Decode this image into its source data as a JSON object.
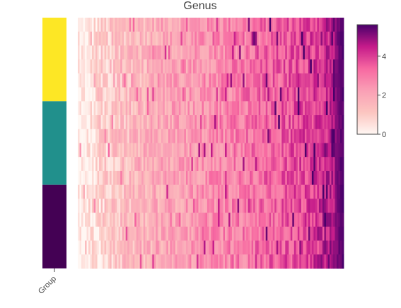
{
  "chart_data": {
    "type": "heatmap",
    "title": "Genus",
    "xlabel": "",
    "ylabel": "",
    "annotation_track": {
      "label": "Group",
      "groups": [
        {
          "rows": [
            0,
            5
          ],
          "color": "#fde725"
        },
        {
          "rows": [
            6,
            11
          ],
          "color": "#21908c"
        },
        {
          "rows": [
            12,
            17
          ],
          "color": "#440154"
        }
      ]
    },
    "n_rows": 18,
    "n_cols": 150,
    "column_baseline": [
      0.05,
      0.1,
      0.5,
      0.8,
      1.0,
      1.2,
      1.35,
      1.5,
      1.6,
      1.7,
      1.8,
      1.9,
      2.0,
      2.1,
      2.2,
      2.3,
      2.4,
      2.5,
      2.6,
      2.7,
      2.8,
      2.9,
      3.0,
      3.1,
      3.2,
      3.3,
      3.4,
      3.5,
      3.6,
      3.7,
      3.8,
      4.0,
      4.2,
      4.5,
      5.0,
      5.5
    ],
    "colorscale": [
      {
        "v": 0.0,
        "color": "#fff7f3"
      },
      {
        "v": 0.2,
        "color": "#fcc5c0"
      },
      {
        "v": 0.4,
        "color": "#fa9fb5"
      },
      {
        "v": 0.6,
        "color": "#f768a1"
      },
      {
        "v": 0.8,
        "color": "#c51b8a"
      },
      {
        "v": 1.0,
        "color": "#49006a"
      }
    ],
    "zlim": [
      0,
      5.6
    ],
    "colorbar": {
      "ticks": [
        0,
        2,
        4
      ],
      "tick_labels": [
        "0",
        "2",
        "4"
      ],
      "placement": "right"
    },
    "grid": false
  }
}
